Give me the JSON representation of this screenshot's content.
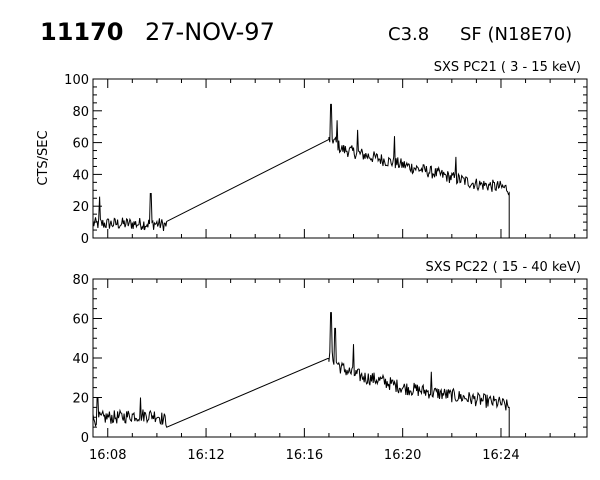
{
  "header": {
    "event_id": "11170",
    "date": "27-NOV-97",
    "goes_class": "C3.8",
    "flare_location": "SF (N18E70)"
  },
  "colors": {
    "background": "#ffffff",
    "ink": "#000000"
  },
  "chart_data": [
    {
      "type": "line",
      "title": "SXS PC21  (  3 - 15 keV)",
      "xlabel": "",
      "ylabel": "CTS/SEC",
      "ylim": [
        0,
        100
      ],
      "yticks": [
        0,
        20,
        40,
        60,
        80,
        100
      ],
      "xlim": [
        "16:07:24",
        "16:27:30"
      ],
      "xticks": [
        "16:08",
        "16:12",
        "16:16",
        "16:20",
        "16:24"
      ],
      "xtick_labels_shown": false,
      "grid": false,
      "series": [
        {
          "x": [
            "16:07:24",
            "16:08:00",
            "16:08:30",
            "16:09:00",
            "16:09:30",
            "16:10:00",
            "16:10:24",
            "16:17:00",
            "16:17:10",
            "16:17:30",
            "16:18:00",
            "16:18:30",
            "16:19:00",
            "16:19:30",
            "16:20:00",
            "16:20:30",
            "16:21:00",
            "16:21:30",
            "16:22:00",
            "16:22:30",
            "16:23:00",
            "16:23:30",
            "16:24:00",
            "16:24:20",
            "16:24:22"
          ],
          "y": [
            9,
            9,
            9,
            9,
            9,
            9,
            8,
            62,
            62,
            56,
            54,
            52,
            50,
            48,
            46,
            44,
            42,
            40,
            38,
            36,
            34,
            33,
            32,
            31,
            0
          ],
          "noise": 4,
          "peaks": [
            [
              "16:07:40",
              26
            ],
            [
              "16:09:45",
              28
            ],
            [
              "16:17:05",
              84
            ],
            [
              "16:17:20",
              74
            ],
            [
              "16:18:10",
              68
            ],
            [
              "16:19:40",
              64
            ],
            [
              "16:22:10",
              51
            ]
          ]
        }
      ]
    },
    {
      "type": "line",
      "title": "SXS PC22  ( 15 - 40 keV)",
      "xlabel": "",
      "ylabel": "",
      "ylim": [
        0,
        80
      ],
      "yticks": [
        0,
        20,
        40,
        60,
        80
      ],
      "xlim": [
        "16:07:24",
        "16:27:30"
      ],
      "xticks": [
        "16:08",
        "16:12",
        "16:16",
        "16:20",
        "16:24"
      ],
      "xtick_labels_shown": true,
      "grid": false,
      "series": [
        {
          "x": [
            "16:07:24",
            "16:08:00",
            "16:08:30",
            "16:09:00",
            "16:09:30",
            "16:10:00",
            "16:10:24",
            "16:17:00",
            "16:17:10",
            "16:17:30",
            "16:18:00",
            "16:18:30",
            "16:19:00",
            "16:19:30",
            "16:20:00",
            "16:20:30",
            "16:21:00",
            "16:21:30",
            "16:22:00",
            "16:22:30",
            "16:23:00",
            "16:23:30",
            "16:24:00",
            "16:24:20",
            "16:24:22"
          ],
          "y": [
            9,
            10,
            10,
            11,
            11,
            11,
            8,
            40,
            40,
            35,
            32,
            30,
            29,
            27,
            25,
            24,
            23,
            22,
            21,
            20,
            19,
            18,
            17,
            15,
            0
          ],
          "noise": 3.5,
          "peaks": [
            [
              "16:07:35",
              20
            ],
            [
              "16:09:20",
              20
            ],
            [
              "16:17:05",
              63
            ],
            [
              "16:17:15",
              55
            ],
            [
              "16:18:00",
              47
            ],
            [
              "16:21:10",
              33
            ]
          ]
        }
      ]
    }
  ]
}
